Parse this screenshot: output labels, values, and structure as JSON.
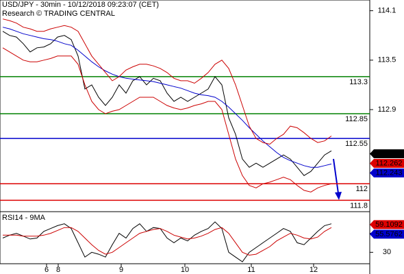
{
  "chart_data": [
    {
      "type": "line",
      "title": "USD/JPY - 30min - 10/12/2018 09:23:07 (CET)",
      "subtitle": "Research © TRADING CENTRAL",
      "xlim": [
        -0.4,
        53.6
      ],
      "ylim": [
        111.67,
        114.23
      ],
      "yticks": [
        114.1,
        113.5,
        112.9
      ],
      "series": [
        {
          "color": "#000000",
          "values": [
            113.85,
            113.8,
            113.78,
            113.7,
            113.6,
            113.65,
            113.66,
            113.7,
            113.78,
            113.8,
            113.75,
            113.55,
            113.15,
            113.2,
            113.05,
            112.95,
            113.05,
            113.2,
            113.1,
            113.25,
            113.3,
            113.2,
            113.28,
            113.25,
            113.1,
            113.0,
            113.05,
            113.0,
            113.05,
            113.1,
            113.15,
            113.3,
            113.2,
            112.8,
            112.6,
            112.3,
            112.2,
            112.25,
            112.2,
            112.25,
            112.3,
            112.35,
            112.3,
            112.2,
            112.1,
            112.15,
            112.25,
            112.35,
            112.4
          ]
        },
        {
          "color": "#0000cc",
          "values": [
            113.9,
            113.88,
            113.85,
            113.82,
            113.8,
            113.78,
            113.76,
            113.75,
            113.73,
            113.7,
            113.68,
            113.62,
            113.55,
            113.48,
            113.42,
            113.37,
            113.33,
            113.3,
            113.28,
            113.27,
            113.26,
            113.25,
            113.24,
            113.22,
            113.2,
            113.18,
            113.16,
            113.13,
            113.1,
            113.08,
            113.07,
            113.05,
            113.0,
            112.93,
            112.85,
            112.77,
            112.68,
            112.6,
            112.52,
            112.45,
            112.38,
            112.32,
            112.28,
            112.25,
            112.22,
            112.2,
            112.2,
            112.22,
            112.24
          ]
        },
        {
          "color": "#cc0000",
          "values": [
            114.0,
            113.98,
            113.95,
            113.9,
            113.88,
            113.85,
            113.85,
            113.88,
            113.9,
            113.92,
            113.9,
            113.85,
            113.7,
            113.55,
            113.45,
            113.35,
            113.25,
            113.3,
            113.38,
            113.42,
            113.45,
            113.45,
            113.43,
            113.4,
            113.35,
            113.28,
            113.25,
            113.25,
            113.22,
            113.28,
            113.35,
            113.45,
            113.5,
            113.4,
            113.2,
            112.95,
            112.7,
            112.55,
            112.5,
            112.48,
            112.55,
            112.6,
            112.7,
            112.68,
            112.62,
            112.55,
            112.5,
            112.52,
            112.58
          ]
        },
        {
          "color": "#cc0000",
          "values": [
            113.65,
            113.6,
            113.55,
            113.5,
            113.48,
            113.48,
            113.5,
            113.52,
            113.55,
            113.55,
            113.55,
            113.45,
            113.2,
            113.0,
            112.9,
            112.85,
            112.88,
            112.9,
            112.95,
            113.0,
            113.05,
            113.05,
            113.05,
            113.0,
            112.95,
            112.92,
            112.9,
            112.92,
            112.95,
            112.97,
            113.0,
            113.0,
            112.9,
            112.6,
            112.3,
            112.1,
            111.98,
            111.95,
            112.0,
            112.02,
            112.05,
            112.08,
            112.05,
            111.98,
            111.92,
            111.9,
            111.95,
            111.98,
            112.0
          ]
        }
      ],
      "levels": [
        {
          "value": 113.3,
          "color": "#008000"
        },
        {
          "value": 112.85,
          "color": "#008000"
        },
        {
          "value": 112.55,
          "color": "#0000cc"
        },
        {
          "value": 112,
          "color": "#dd0000"
        },
        {
          "value": 111.8,
          "color": "#dd0000"
        }
      ],
      "markers": [
        {
          "value": 112.364,
          "color": "#000000"
        },
        {
          "value": 112.262,
          "color": "#dd0000"
        },
        {
          "value": 112.243,
          "color": "#0000cc"
        }
      ]
    },
    {
      "type": "line",
      "title": "RSI14 - 9MA",
      "xlim": [
        -0.4,
        53.6
      ],
      "xticks": [
        {
          "value": 6.4,
          "label": "6"
        },
        {
          "value": 8.1,
          "label": "8"
        },
        {
          "value": 17.3,
          "label": "9"
        },
        {
          "value": 26.6,
          "label": "10"
        },
        {
          "value": 36.3,
          "label": "11"
        },
        {
          "value": 45.4,
          "label": "12"
        }
      ],
      "ylim": [
        18,
        72
      ],
      "yticks": [
        50,
        30
      ],
      "series": [
        {
          "color": "#000000",
          "values": [
            45,
            48,
            50,
            47,
            44,
            45,
            52,
            55,
            58,
            60,
            55,
            40,
            25,
            30,
            28,
            25,
            38,
            50,
            45,
            55,
            60,
            52,
            56,
            55,
            45,
            40,
            45,
            42,
            48,
            52,
            55,
            62,
            55,
            30,
            25,
            20,
            30,
            35,
            40,
            45,
            50,
            55,
            52,
            40,
            38,
            45,
            52,
            58,
            60
          ]
        },
        {
          "color": "#cc0000",
          "values": [
            48,
            48,
            48,
            47,
            47,
            47,
            48,
            50,
            53,
            56,
            56,
            52,
            45,
            38,
            32,
            28,
            30,
            35,
            40,
            45,
            50,
            52,
            54,
            55,
            52,
            48,
            46,
            44,
            45,
            47,
            50,
            54,
            56,
            50,
            40,
            30,
            27,
            28,
            32,
            36,
            42,
            46,
            50,
            48,
            45,
            44,
            46,
            52,
            56
          ]
        }
      ],
      "markers": [
        {
          "value": 59.1092,
          "color": "#dd0000"
        },
        {
          "value": 55.5762,
          "color": "#0000cc"
        }
      ]
    }
  ]
}
